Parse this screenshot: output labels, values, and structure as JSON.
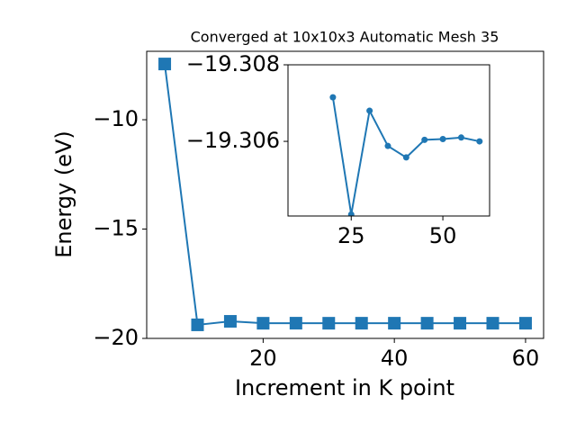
{
  "chart_data": [
    {
      "type": "line",
      "title": "Converged at 10x10x3 Automatic Mesh 35",
      "xlabel": "Increment in K point",
      "ylabel": "Energy (eV)",
      "x": [
        5,
        10,
        15,
        20,
        25,
        30,
        35,
        40,
        45,
        50,
        55,
        60
      ],
      "series": [
        {
          "name": "Energy",
          "color": "#1f77b4",
          "marker": "square",
          "values": [
            -7.45,
            -19.38,
            -19.22,
            -19.30715,
            -19.30409,
            -19.3068,
            -19.30588,
            -19.30558,
            -19.30604,
            -19.30606,
            -19.3061,
            -19.306
          ]
        }
      ],
      "xlim": [
        2.25,
        62.75
      ],
      "ylim": [
        -20.0,
        -6.87
      ],
      "xticks": [
        20,
        40,
        60
      ],
      "yticks": [
        {
          "value": -20,
          "label": "−20"
        },
        {
          "value": -15,
          "label": "−15"
        },
        {
          "value": -10,
          "label": "−10"
        }
      ]
    },
    {
      "type": "line",
      "x": [
        20,
        25,
        30,
        35,
        40,
        45,
        50,
        55,
        60
      ],
      "series": [
        {
          "name": "Energy",
          "color": "#1f77b4",
          "marker": "circle",
          "values": [
            -19.30715,
            -19.30409,
            -19.3068,
            -19.30588,
            -19.30558,
            -19.30604,
            -19.30606,
            -19.3061,
            -19.306
          ]
        }
      ],
      "xlim": [
        7.75,
        62.75
      ],
      "ylim": [
        -19.30405,
        -19.308
      ],
      "xticks": [
        25,
        50
      ],
      "yticks": [
        {
          "value": -19.308,
          "label": "−19.308"
        },
        {
          "value": -19.306,
          "label": "−19.306"
        }
      ]
    }
  ]
}
